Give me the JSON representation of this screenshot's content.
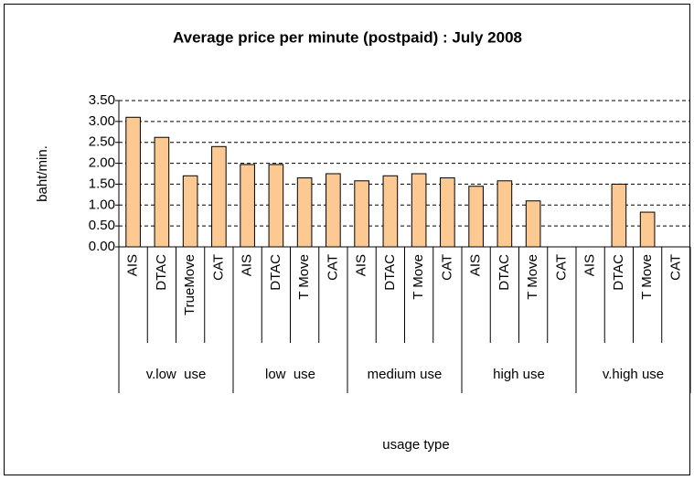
{
  "chart_data": {
    "type": "bar",
    "title": "Average price per minute (postpaid) : July 2008",
    "x_label": "usage type",
    "y_label": "baht/min.",
    "groups": [
      "v.low  use",
      "low  use",
      "medium use",
      "high use",
      "v.high use"
    ],
    "categories": [
      "AIS",
      "DTAC",
      "TrueMove",
      "CAT",
      "AIS",
      "DTAC",
      "T Move",
      "CAT",
      "AIS",
      "DTAC",
      "T Move",
      "CAT",
      "AIS",
      "DTAC",
      "T Move",
      "CAT",
      "AIS",
      "DTAC",
      "T Move",
      "CAT"
    ],
    "values": [
      3.1,
      2.62,
      1.7,
      2.4,
      1.97,
      1.97,
      1.65,
      1.75,
      1.58,
      1.7,
      1.75,
      1.65,
      1.45,
      1.58,
      1.1,
      null,
      null,
      1.5,
      0.83,
      null
    ],
    "color": "#fcc993",
    "ylim": [
      0,
      3.5
    ],
    "yticks": [
      {
        "value": 0,
        "label": "0.00"
      },
      {
        "value": 0.5,
        "label": "0.50"
      },
      {
        "value": 1,
        "label": "1.00"
      },
      {
        "value": 1.5,
        "label": "1.50"
      },
      {
        "value": 2,
        "label": "2.00"
      },
      {
        "value": 2.5,
        "label": "2.50"
      },
      {
        "value": 3,
        "label": "3.00"
      },
      {
        "value": 3.5,
        "label": "3.50"
      }
    ],
    "grid": true
  }
}
